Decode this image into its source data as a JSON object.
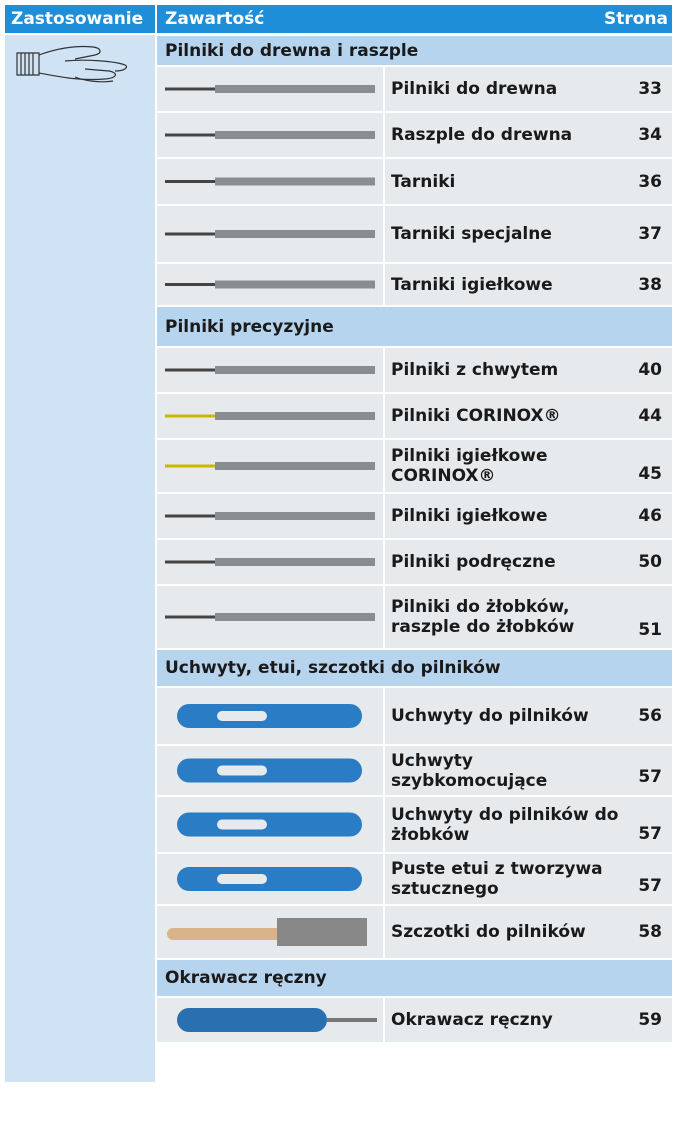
{
  "header": {
    "columns": [
      "Zastosowanie",
      "Zawartość",
      "Strona"
    ]
  },
  "sections": [
    {
      "title": "Pilniki do drewna i raszple",
      "items": [
        {
          "name": [
            "Pilniki do drewna"
          ],
          "page": "33"
        },
        {
          "name": [
            "Raszple do drewna"
          ],
          "page": "34"
        },
        {
          "name": [
            "Tarniki"
          ],
          "page": "36"
        },
        {
          "name": [
            "Tarniki specjalne"
          ],
          "page": "37"
        },
        {
          "name": [
            "Tarniki igiełkowe"
          ],
          "page": "38"
        }
      ]
    },
    {
      "title": "Pilniki precyzyjne",
      "items": [
        {
          "name": [
            "Pilniki z chwytem"
          ],
          "page": "40"
        },
        {
          "name": [
            "Pilniki CORINOX®"
          ],
          "page": "44"
        },
        {
          "name": [
            "Pilniki igiełkowe",
            "CORINOX®"
          ],
          "page": "45"
        },
        {
          "name": [
            "Pilniki igiełkowe"
          ],
          "page": "46"
        },
        {
          "name": [
            "Pilniki podręczne"
          ],
          "page": "50"
        },
        {
          "name": [
            "Pilniki do żłobków,",
            "raszple do żłobków"
          ],
          "page": "51"
        }
      ]
    },
    {
      "title": "Uchwyty, etui, szczotki do pilników",
      "items": [
        {
          "name": [
            "Uchwyty do pilników"
          ],
          "page": "56"
        },
        {
          "name": [
            "Uchwyty",
            "szybkomocujące"
          ],
          "page": "57"
        },
        {
          "name": [
            "Uchwyty do pilników do",
            "żłobków"
          ],
          "page": "57"
        },
        {
          "name": [
            "Puste etui z tworzywa",
            "sztucznego"
          ],
          "page": "57"
        },
        {
          "name": [
            "Szczotki do pilników"
          ],
          "page": "58"
        }
      ]
    },
    {
      "title": "Okrawacz ręczny",
      "items": [
        {
          "name": [
            "Okrawacz ręczny"
          ],
          "page": "59"
        }
      ]
    }
  ]
}
